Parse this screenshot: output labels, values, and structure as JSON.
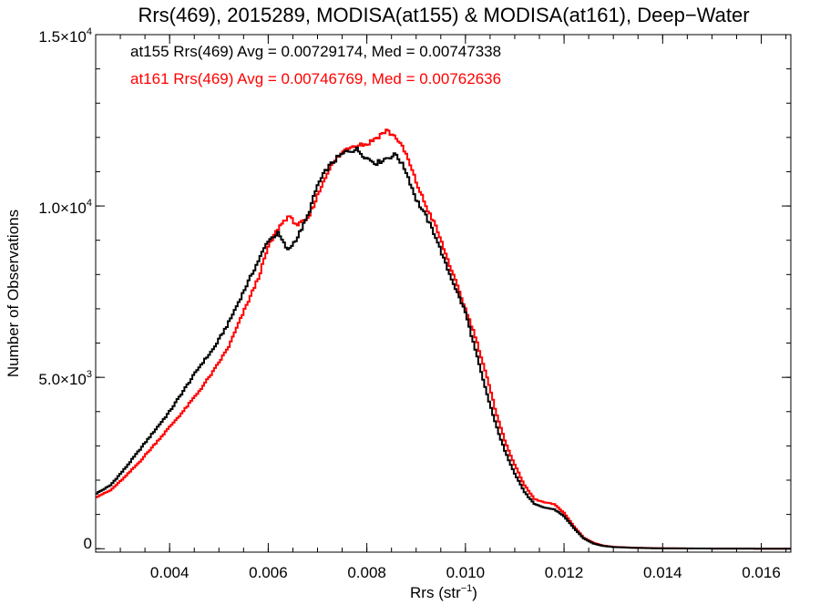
{
  "chart_data": {
    "type": "line",
    "style": "step histogram",
    "title": "Rrs(469), 2015289, MODISA(at155) & MODISA(at161), Deep−Water",
    "xlabel": "Rrs (str",
    "xlabel_superscript": "−1",
    "xlabel_suffix": ")",
    "ylabel": "Number of Observations",
    "xlim": [
      0.0025,
      0.0166
    ],
    "ylim": [
      -100,
      15000
    ],
    "grid": false,
    "legend_placement": "top-left",
    "x_ticks": [
      {
        "value": 0.004,
        "label": "0.004"
      },
      {
        "value": 0.006,
        "label": "0.006"
      },
      {
        "value": 0.008,
        "label": "0.008"
      },
      {
        "value": 0.01,
        "label": "0.010"
      },
      {
        "value": 0.012,
        "label": "0.012"
      },
      {
        "value": 0.014,
        "label": "0.014"
      },
      {
        "value": 0.016,
        "label": "0.016"
      }
    ],
    "y_ticks": [
      {
        "value": 0,
        "mantissa": "0",
        "exponent": ""
      },
      {
        "value": 5000,
        "mantissa": "5.0×10",
        "exponent": "3"
      },
      {
        "value": 10000,
        "mantissa": "1.0×10",
        "exponent": "4"
      },
      {
        "value": 15000,
        "mantissa": "1.5×10",
        "exponent": "4"
      }
    ],
    "series": [
      {
        "name": "at155",
        "legend": "at155 Rrs(469) Avg = 0.00729174, Med = 0.00747338",
        "color": "#000000",
        "points": [
          [
            0.0025,
            1600
          ],
          [
            0.0028,
            1850
          ],
          [
            0.0031,
            2350
          ],
          [
            0.0034,
            2900
          ],
          [
            0.0037,
            3450
          ],
          [
            0.004,
            4000
          ],
          [
            0.0043,
            4650
          ],
          [
            0.0046,
            5300
          ],
          [
            0.0049,
            5850
          ],
          [
            0.0052,
            6600
          ],
          [
            0.0055,
            7500
          ],
          [
            0.0058,
            8400
          ],
          [
            0.006,
            9000
          ],
          [
            0.0062,
            9200
          ],
          [
            0.0064,
            8700
          ],
          [
            0.0066,
            9100
          ],
          [
            0.0068,
            9700
          ],
          [
            0.007,
            10600
          ],
          [
            0.0072,
            11100
          ],
          [
            0.0074,
            11400
          ],
          [
            0.0076,
            11600
          ],
          [
            0.0078,
            11650
          ],
          [
            0.008,
            11400
          ],
          [
            0.0082,
            11250
          ],
          [
            0.0084,
            11400
          ],
          [
            0.0086,
            11500
          ],
          [
            0.0088,
            11000
          ],
          [
            0.009,
            10200
          ],
          [
            0.0092,
            9700
          ],
          [
            0.0094,
            9100
          ],
          [
            0.0096,
            8300
          ],
          [
            0.0098,
            7600
          ],
          [
            0.01,
            6900
          ],
          [
            0.0102,
            5800
          ],
          [
            0.0104,
            4700
          ],
          [
            0.0106,
            3700
          ],
          [
            0.0108,
            2850
          ],
          [
            0.011,
            2200
          ],
          [
            0.0112,
            1650
          ],
          [
            0.0114,
            1300
          ],
          [
            0.0116,
            1200
          ],
          [
            0.0118,
            1150
          ],
          [
            0.012,
            950
          ],
          [
            0.0122,
            600
          ],
          [
            0.0124,
            300
          ],
          [
            0.0126,
            150
          ],
          [
            0.0128,
            80
          ],
          [
            0.013,
            50
          ],
          [
            0.0134,
            25
          ],
          [
            0.014,
            10
          ],
          [
            0.015,
            5
          ],
          [
            0.0166,
            0
          ]
        ]
      },
      {
        "name": "at161",
        "legend": "at161 Rrs(469) Avg = 0.00746769, Med = 0.00762636",
        "color": "#ff0000",
        "points": [
          [
            0.0025,
            1500
          ],
          [
            0.0028,
            1700
          ],
          [
            0.0031,
            2100
          ],
          [
            0.0034,
            2550
          ],
          [
            0.0037,
            3050
          ],
          [
            0.004,
            3550
          ],
          [
            0.0043,
            4050
          ],
          [
            0.0046,
            4600
          ],
          [
            0.0049,
            5200
          ],
          [
            0.0052,
            5900
          ],
          [
            0.0055,
            6900
          ],
          [
            0.0058,
            7900
          ],
          [
            0.006,
            8800
          ],
          [
            0.0062,
            9350
          ],
          [
            0.0064,
            9700
          ],
          [
            0.0066,
            9450
          ],
          [
            0.0068,
            9600
          ],
          [
            0.007,
            10300
          ],
          [
            0.0072,
            11000
          ],
          [
            0.0074,
            11400
          ],
          [
            0.0076,
            11700
          ],
          [
            0.0078,
            11800
          ],
          [
            0.008,
            11800
          ],
          [
            0.0082,
            12000
          ],
          [
            0.0084,
            12200
          ],
          [
            0.0086,
            12000
          ],
          [
            0.0088,
            11500
          ],
          [
            0.009,
            10700
          ],
          [
            0.0092,
            10000
          ],
          [
            0.0094,
            9400
          ],
          [
            0.0096,
            8600
          ],
          [
            0.0098,
            7800
          ],
          [
            0.01,
            7000
          ],
          [
            0.0102,
            6200
          ],
          [
            0.0104,
            5200
          ],
          [
            0.0106,
            4100
          ],
          [
            0.0108,
            3150
          ],
          [
            0.011,
            2450
          ],
          [
            0.0112,
            1850
          ],
          [
            0.0114,
            1450
          ],
          [
            0.0116,
            1350
          ],
          [
            0.0118,
            1300
          ],
          [
            0.012,
            1050
          ],
          [
            0.0122,
            650
          ],
          [
            0.0124,
            320
          ],
          [
            0.0126,
            170
          ],
          [
            0.0128,
            90
          ],
          [
            0.013,
            55
          ],
          [
            0.0134,
            30
          ],
          [
            0.014,
            12
          ],
          [
            0.015,
            5
          ],
          [
            0.0166,
            0
          ]
        ]
      }
    ]
  }
}
